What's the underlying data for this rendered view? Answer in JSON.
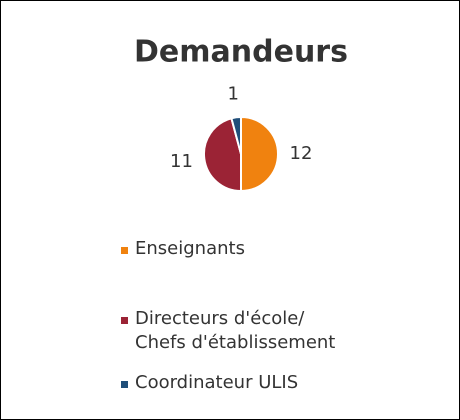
{
  "chart_data": {
    "type": "pie",
    "title": "Demandeurs",
    "categories": [
      "Enseignants",
      "Directeurs d'école/ Chefs d'établissement",
      "Coordinateur ULIS"
    ],
    "values": [
      12,
      11,
      1
    ],
    "colors": [
      "#f0820f",
      "#9b2335",
      "#1f4e79"
    ]
  }
}
